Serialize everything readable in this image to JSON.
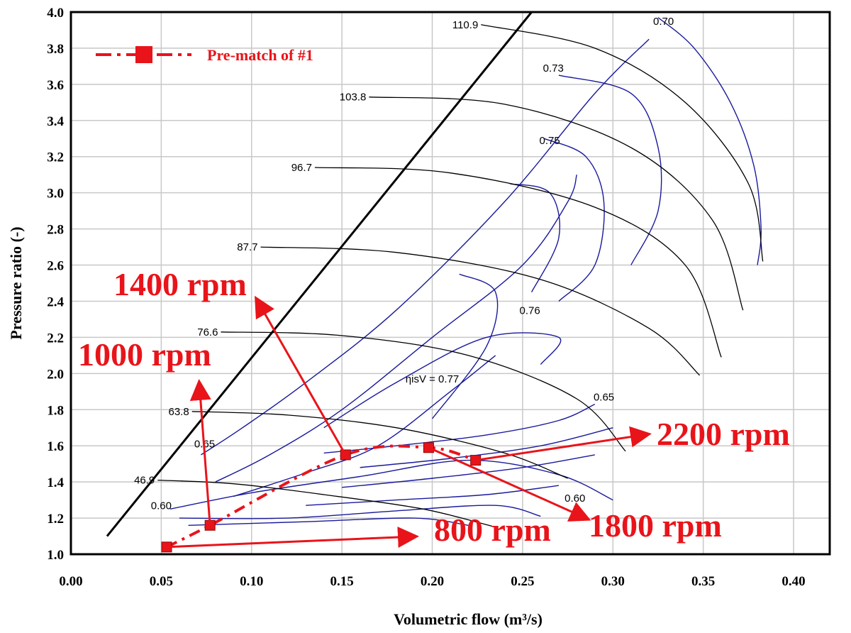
{
  "chart_data": {
    "type": "line",
    "xlabel": "Volumetric flow (m³/s)",
    "ylabel": "Pressure ratio (-)",
    "xlim": [
      0.0,
      0.42
    ],
    "ylim": [
      1.0,
      4.0
    ],
    "x_ticks": [
      "0.00",
      "0.05",
      "0.10",
      "0.15",
      "0.20",
      "0.25",
      "0.30",
      "0.35",
      "0.40"
    ],
    "y_ticks": [
      "1.0",
      "1.2",
      "1.4",
      "1.6",
      "1.8",
      "2.0",
      "2.2",
      "2.4",
      "2.6",
      "2.8",
      "3.0",
      "3.2",
      "3.4",
      "3.6",
      "3.8",
      "4.0"
    ],
    "grid": true,
    "legend": {
      "position": "top-left",
      "label": "Pre-match of #1"
    },
    "colors": {
      "operating_line": "#e8141a",
      "efficiency": "#1a1a9c",
      "speed": "#000000",
      "surge": "#000000"
    },
    "surge_line": {
      "x": [
        0.02,
        0.255
      ],
      "y": [
        1.1,
        4.0
      ]
    },
    "speed_lines": [
      {
        "label": "46.9",
        "x": [
          0.048,
          0.09,
          0.14,
          0.195,
          0.235
        ],
        "y": [
          1.41,
          1.39,
          1.33,
          1.25,
          1.15
        ]
      },
      {
        "label": "63.8",
        "x": [
          0.067,
          0.12,
          0.18,
          0.24,
          0.275
        ],
        "y": [
          1.79,
          1.77,
          1.7,
          1.56,
          1.42
        ]
      },
      {
        "label": "76.6",
        "x": [
          0.083,
          0.15,
          0.22,
          0.28,
          0.307
        ],
        "y": [
          2.23,
          2.21,
          2.1,
          1.86,
          1.57
        ]
      },
      {
        "label": "87.7",
        "x": [
          0.105,
          0.18,
          0.26,
          0.32,
          0.348
        ],
        "y": [
          2.7,
          2.67,
          2.52,
          2.25,
          1.99
        ]
      },
      {
        "label": "96.7",
        "x": [
          0.135,
          0.21,
          0.29,
          0.34,
          0.36
        ],
        "y": [
          3.14,
          3.11,
          2.92,
          2.6,
          2.09
        ]
      },
      {
        "label": "103.8",
        "x": [
          0.165,
          0.24,
          0.31,
          0.355,
          0.372
        ],
        "y": [
          3.53,
          3.49,
          3.25,
          2.85,
          2.35
        ]
      },
      {
        "label": "110.9",
        "x": [
          0.227,
          0.29,
          0.34,
          0.375,
          0.383
        ],
        "y": [
          3.93,
          3.8,
          3.5,
          3.05,
          2.62
        ]
      }
    ],
    "efficiency_labels": [
      {
        "label": "0.60",
        "x": 0.05,
        "y": 1.25
      },
      {
        "label": "0.65",
        "x": 0.074,
        "y": 1.59
      },
      {
        "label": "0.70",
        "x": 0.328,
        "y": 3.93
      },
      {
        "label": "0.73",
        "x": 0.267,
        "y": 3.67
      },
      {
        "label": "0.75",
        "x": 0.265,
        "y": 3.27
      },
      {
        "label": "0.76",
        "x": 0.254,
        "y": 2.33
      },
      {
        "label": "ηisV = 0.77",
        "x": 0.2,
        "y": 1.95
      },
      {
        "label": "0.65",
        "x": 0.295,
        "y": 1.85
      },
      {
        "label": "0.60",
        "x": 0.279,
        "y": 1.29
      }
    ],
    "series": [
      {
        "name": "Pre-match of #1",
        "x": [
          0.053,
          0.077,
          0.152,
          0.198,
          0.224
        ],
        "y": [
          1.04,
          1.16,
          1.55,
          1.59,
          1.52
        ],
        "point_labels": [
          "800 rpm",
          "1000 rpm",
          "1400 rpm",
          "1800 rpm",
          "2200 rpm"
        ]
      }
    ]
  }
}
